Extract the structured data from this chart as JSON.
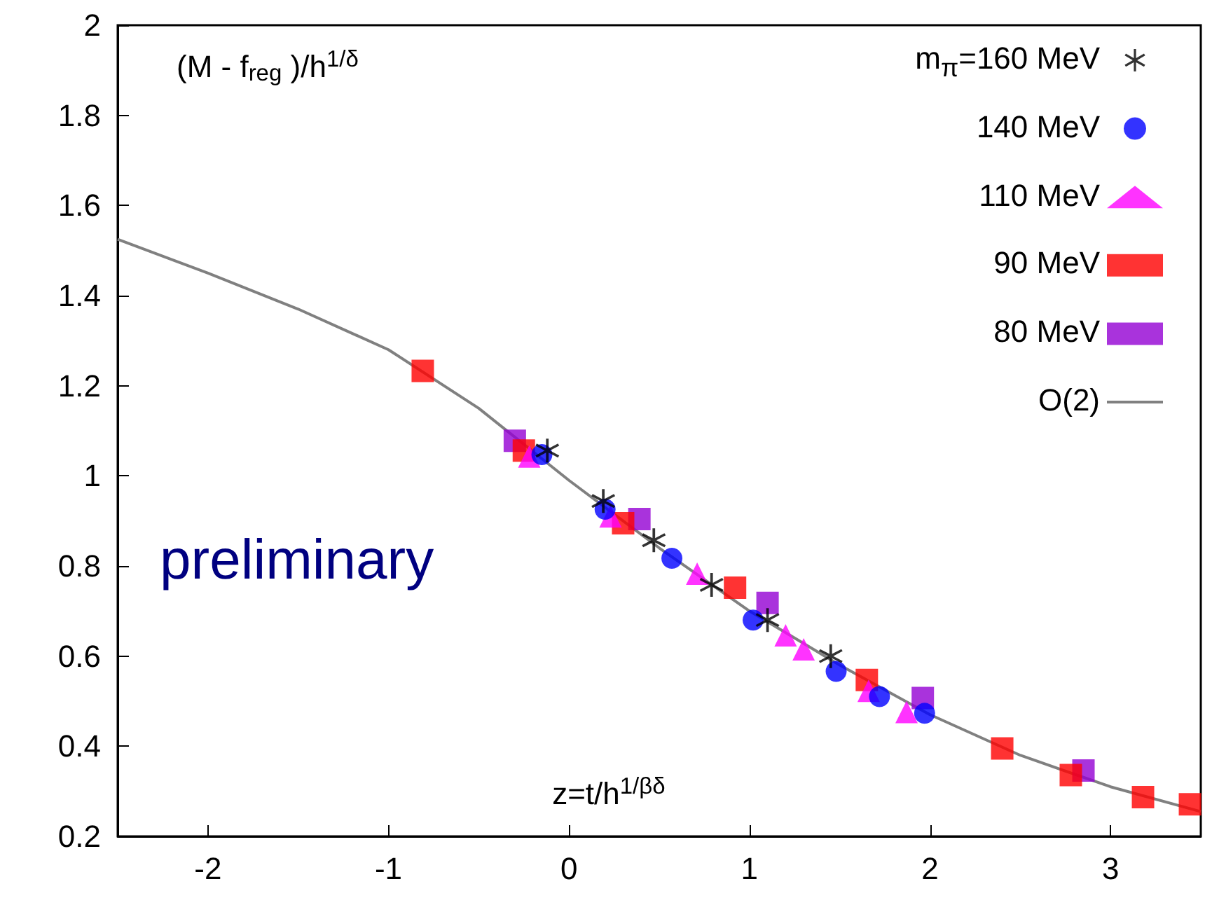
{
  "chart_data": {
    "type": "scatter",
    "xlabel": "z=t/h$^{1/βδ}$",
    "ylabel": "(M - f$_{reg}$ )/h$^{1/δ}$",
    "annotations": [
      "preliminary"
    ],
    "xlim": [
      -2.5,
      3.5
    ],
    "xticks": [
      -2,
      -1,
      0,
      1,
      2,
      3
    ],
    "ylim": [
      0.2,
      2
    ],
    "yticks": [
      0.2,
      0.4,
      0.6,
      0.8,
      1,
      1.2,
      1.4,
      1.6,
      1.8,
      2
    ],
    "grid": false,
    "legend": "top right",
    "series": [
      {
        "name": "m$_{π}$=160 MeV",
        "color": "#000000",
        "marker": "star",
        "x": [
          -0.12,
          0.19,
          0.47,
          0.79,
          1.1,
          1.45
        ],
        "values": [
          1.056,
          0.944,
          0.857,
          0.758,
          0.68,
          0.6
        ]
      },
      {
        "name": "140 MeV",
        "color": "#0000ff",
        "marker": "circle",
        "x": [
          -0.15,
          0.2,
          0.57,
          1.02,
          1.48,
          1.72,
          1.97
        ],
        "values": [
          1.047,
          0.926,
          0.817,
          0.68,
          0.566,
          0.51,
          0.473
        ]
      },
      {
        "name": "110 MeV",
        "color": "#ff00ff",
        "marker": "triangle",
        "x": [
          -0.22,
          0.23,
          0.71,
          1.2,
          1.3,
          1.66,
          1.87
        ],
        "values": [
          1.043,
          0.91,
          0.783,
          0.646,
          0.615,
          0.523,
          0.476
        ]
      },
      {
        "name": "90 MeV",
        "color": "#ff0000",
        "marker": "square",
        "x": [
          -0.81,
          -0.25,
          0.3,
          0.92,
          1.65,
          2.4,
          2.78,
          3.18,
          3.44
        ],
        "values": [
          1.233,
          1.056,
          0.895,
          0.752,
          0.547,
          0.395,
          0.336,
          0.287,
          0.271
        ]
      },
      {
        "name": "80 MeV",
        "color": "#9400d3",
        "marker": "square",
        "x": [
          -0.3,
          0.39,
          1.1,
          1.96,
          2.85
        ],
        "values": [
          1.078,
          0.904,
          0.718,
          0.507,
          0.346
        ]
      },
      {
        "name": "O(2)",
        "type": "line",
        "color": "#808080",
        "marker": "none",
        "x": [
          -2.5,
          -2,
          -1.5,
          -1,
          -0.5,
          0,
          0.5,
          1,
          1.5,
          2,
          2.5,
          3,
          3.5
        ],
        "values": [
          1.525,
          1.45,
          1.37,
          1.28,
          1.15,
          0.99,
          0.84,
          0.7,
          0.58,
          0.47,
          0.38,
          0.31,
          0.255
        ]
      }
    ]
  }
}
